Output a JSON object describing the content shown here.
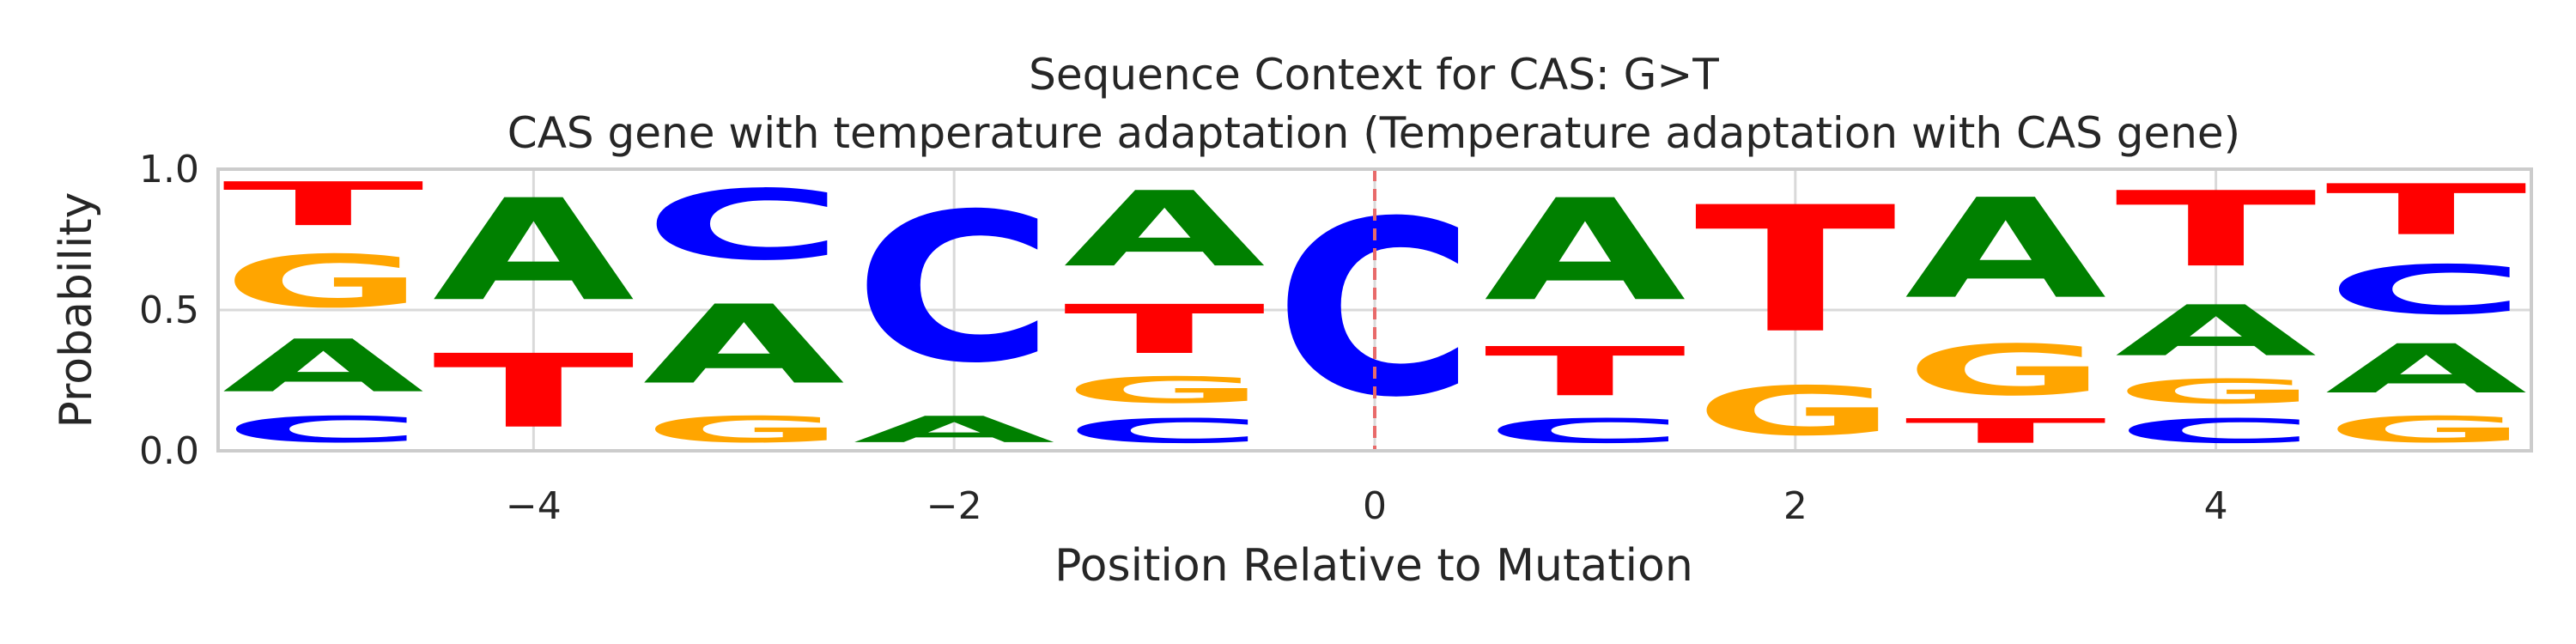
{
  "chart_data": {
    "type": "sequence-logo",
    "title": "Sequence Context for CAS: G>T",
    "subtitle": "CAS gene with temperature adaptation (Temperature adaptation with CAS gene)",
    "xlabel": "Position Relative to Mutation",
    "ylabel": "Probability",
    "xlim": [
      -5.5,
      5.5
    ],
    "ylim": [
      0,
      1
    ],
    "xticks": [
      -4,
      -2,
      0,
      2,
      4
    ],
    "xtick_labels": [
      "−4",
      "−2",
      "0",
      "2",
      "4"
    ],
    "yticks": [
      0,
      0.5,
      1
    ],
    "ytick_labels": [
      "0.0",
      "0.5",
      "1.0"
    ],
    "grid": true,
    "mutation_marker": {
      "x": 0,
      "color": "#e86a6a"
    },
    "base_colors": {
      "A": "#008000",
      "C": "#0000ff",
      "G": "#ffa500",
      "T": "#ff0000"
    },
    "positions": [
      {
        "x": -5,
        "stack": [
          {
            "base": "C",
            "value": 0.15
          },
          {
            "base": "A",
            "value": 0.3
          },
          {
            "base": "G",
            "value": 0.3
          },
          {
            "base": "T",
            "value": 0.25
          }
        ]
      },
      {
        "x": -4,
        "stack": [
          {
            "base": "T",
            "value": 0.42
          },
          {
            "base": "A",
            "value": 0.58
          }
        ]
      },
      {
        "x": -3,
        "stack": [
          {
            "base": "G",
            "value": 0.15
          },
          {
            "base": "A",
            "value": 0.45
          },
          {
            "base": "C",
            "value": 0.4
          }
        ]
      },
      {
        "x": -2,
        "stack": [
          {
            "base": "A",
            "value": 0.15
          },
          {
            "base": "C",
            "value": 0.85
          }
        ]
      },
      {
        "x": -1,
        "stack": [
          {
            "base": "C",
            "value": 0.14
          },
          {
            "base": "G",
            "value": 0.15
          },
          {
            "base": "T",
            "value": 0.28
          },
          {
            "base": "A",
            "value": 0.43
          }
        ]
      },
      {
        "x": 0,
        "stack": [
          {
            "base": "C",
            "value": 1.0
          }
        ]
      },
      {
        "x": 1,
        "stack": [
          {
            "base": "C",
            "value": 0.14
          },
          {
            "base": "T",
            "value": 0.28
          },
          {
            "base": "A",
            "value": 0.58
          }
        ]
      },
      {
        "x": 2,
        "stack": [
          {
            "base": "G",
            "value": 0.28
          },
          {
            "base": "T",
            "value": 0.72
          }
        ]
      },
      {
        "x": 3,
        "stack": [
          {
            "base": "T",
            "value": 0.14
          },
          {
            "base": "G",
            "value": 0.29
          },
          {
            "base": "A",
            "value": 0.57
          }
        ]
      },
      {
        "x": 4,
        "stack": [
          {
            "base": "C",
            "value": 0.14
          },
          {
            "base": "G",
            "value": 0.14
          },
          {
            "base": "A",
            "value": 0.29
          },
          {
            "base": "T",
            "value": 0.43
          }
        ]
      },
      {
        "x": 5,
        "stack": [
          {
            "base": "G",
            "value": 0.15
          },
          {
            "base": "A",
            "value": 0.28
          },
          {
            "base": "C",
            "value": 0.28
          },
          {
            "base": "T",
            "value": 0.29
          }
        ]
      }
    ]
  }
}
